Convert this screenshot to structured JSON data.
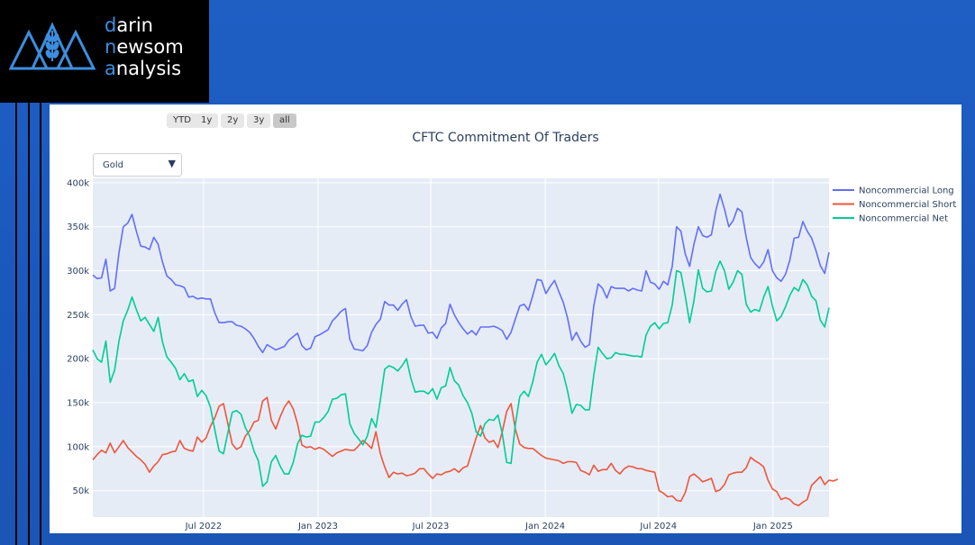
{
  "brand": {
    "line1_first": "d",
    "line1_rest": "arin",
    "line2_pre": "n",
    "line2_rest": "ewsom",
    "line3_first": "a",
    "line3_rest": "nalysis"
  },
  "range_selector": [
    {
      "label": "YTD",
      "active": false
    },
    {
      "label": "1y",
      "active": false
    },
    {
      "label": "2y",
      "active": false
    },
    {
      "label": "3y",
      "active": false
    },
    {
      "label": "all",
      "active": true
    }
  ],
  "dropdown": {
    "selected": "Gold"
  },
  "colors": {
    "long": "#636efa",
    "short": "#ef553b",
    "net": "#00cc96",
    "plot_bg": "#e5ecf6",
    "page_bg": "#1f5fc4"
  },
  "chart_data": {
    "type": "line",
    "title": "CFTC Commitment Of Traders",
    "x_start": "2022-01-04",
    "x_step_days": 7,
    "ylim": [
      20000,
      405000
    ],
    "y_ticks": [
      50000,
      100000,
      150000,
      200000,
      250000,
      300000,
      350000,
      400000
    ],
    "y_tick_labels": [
      "50k",
      "100k",
      "150k",
      "200k",
      "250k",
      "300k",
      "350k",
      "400k"
    ],
    "x_tick_labels": [
      {
        "date": "2022-07-01",
        "label": "Jul 2022"
      },
      {
        "date": "2023-01-01",
        "label": "Jan 2023"
      },
      {
        "date": "2023-07-01",
        "label": "Jul 2023"
      },
      {
        "date": "2024-01-01",
        "label": "Jan 2024"
      },
      {
        "date": "2024-07-01",
        "label": "Jul 2024"
      },
      {
        "date": "2025-01-01",
        "label": "Jan 2025"
      }
    ],
    "legend_position": "top-right",
    "grid": true,
    "series": [
      {
        "name": "Noncommercial Long",
        "color_key": "long",
        "values": [
          295000,
          291000,
          292000,
          313000,
          277000,
          280000,
          320000,
          350000,
          354000,
          364000,
          345000,
          328000,
          327000,
          324000,
          338000,
          330000,
          310000,
          294000,
          290000,
          284000,
          283000,
          281000,
          270000,
          271000,
          268000,
          269000,
          268000,
          268000,
          252000,
          241000,
          241000,
          242000,
          242000,
          238000,
          237000,
          234000,
          230000,
          223000,
          214000,
          207000,
          216000,
          213000,
          210000,
          212000,
          214000,
          221000,
          225000,
          229000,
          215000,
          210000,
          212000,
          225000,
          227000,
          230000,
          233000,
          243000,
          248000,
          254000,
          257000,
          222000,
          211000,
          210000,
          209000,
          215000,
          230000,
          239000,
          245000,
          265000,
          261000,
          261000,
          255000,
          262000,
          267000,
          248000,
          237000,
          238000,
          238000,
          229000,
          230000,
          223000,
          235000,
          240000,
          262000,
          250000,
          241000,
          234000,
          228000,
          232000,
          227000,
          236000,
          236000,
          236000,
          237000,
          235000,
          232000,
          222000,
          230000,
          245000,
          260000,
          262000,
          255000,
          272000,
          290000,
          289000,
          274000,
          282000,
          289000,
          276000,
          264000,
          246000,
          221000,
          230000,
          220000,
          213000,
          216000,
          260000,
          285000,
          280000,
          269000,
          282000,
          280000,
          280000,
          280000,
          277000,
          280000,
          278000,
          277000,
          300000,
          287000,
          285000,
          279000,
          288000,
          284000,
          305000,
          350000,
          345000,
          319000,
          305000,
          330000,
          350000,
          340000,
          338000,
          341000,
          368000,
          387000,
          370000,
          350000,
          357000,
          371000,
          367000,
          338000,
          315000,
          308000,
          303000,
          310000,
          324000,
          300000,
          292000,
          288000,
          296000,
          312000,
          337000,
          338000,
          356000,
          345000,
          337000,
          323000,
          306000,
          297000,
          321000
        ]
      },
      {
        "name": "Noncommercial Short",
        "color_key": "short",
        "values": [
          85000,
          91000,
          96000,
          93000,
          104000,
          93000,
          100000,
          107000,
          99000,
          94000,
          89000,
          85000,
          80000,
          71000,
          78000,
          83000,
          91000,
          92000,
          94000,
          95000,
          107000,
          98000,
          96000,
          95000,
          111000,
          105000,
          110000,
          123000,
          133000,
          146000,
          149000,
          126000,
          103000,
          97000,
          100000,
          112000,
          118000,
          128000,
          130000,
          152000,
          156000,
          130000,
          120000,
          134000,
          145000,
          152000,
          143000,
          126000,
          102000,
          99000,
          100000,
          97000,
          99000,
          97000,
          93000,
          89000,
          93000,
          95000,
          97000,
          96000,
          96000,
          101000,
          107000,
          103000,
          98000,
          117000,
          92000,
          77000,
          65000,
          71000,
          69000,
          70000,
          67000,
          68000,
          70000,
          75000,
          75000,
          69000,
          64000,
          69000,
          68000,
          71000,
          72000,
          75000,
          71000,
          76000,
          78000,
          94000,
          110000,
          124000,
          110000,
          105000,
          107000,
          99000,
          117000,
          140000,
          149000,
          120000,
          103000,
          99000,
          98000,
          98000,
          94000,
          90000,
          87000,
          86000,
          85000,
          84000,
          81000,
          83000,
          83000,
          82000,
          73000,
          71000,
          68000,
          79000,
          72000,
          74000,
          74000,
          81000,
          73000,
          69000,
          75000,
          78000,
          77000,
          75000,
          75000,
          73000,
          72000,
          71000,
          50000,
          47000,
          43000,
          44000,
          39000,
          38000,
          48000,
          66000,
          69000,
          65000,
          60000,
          62000,
          64000,
          49000,
          51000,
          57000,
          68000,
          70000,
          71000,
          71000,
          76000,
          88000,
          84000,
          81000,
          77000,
          62000,
          52000,
          49000,
          40000,
          42000,
          40000,
          35000,
          33000,
          37000,
          40000,
          56000,
          61000,
          66000,
          57000,
          62000,
          61000,
          63000
        ]
      },
      {
        "name": "Noncommercial Net",
        "color_key": "net",
        "values": [
          210000,
          200000,
          196000,
          220000,
          173000,
          187000,
          220000,
          243000,
          255000,
          270000,
          256000,
          243000,
          247000,
          239000,
          231000,
          247000,
          219000,
          202000,
          196000,
          189000,
          176000,
          183000,
          174000,
          176000,
          157000,
          164000,
          158000,
          145000,
          119000,
          95000,
          92000,
          116000,
          139000,
          141000,
          137000,
          122000,
          112000,
          95000,
          84000,
          55000,
          60000,
          83000,
          90000,
          78000,
          69000,
          69000,
          82000,
          103000,
          113000,
          111000,
          112000,
          128000,
          128000,
          133000,
          140000,
          154000,
          155000,
          159000,
          160000,
          126000,
          115000,
          109000,
          102000,
          112000,
          132000,
          122000,
          153000,
          188000,
          192000,
          190000,
          186000,
          192000,
          200000,
          178000,
          162000,
          163000,
          163000,
          160000,
          166000,
          154000,
          167000,
          169000,
          190000,
          175000,
          170000,
          158000,
          150000,
          138000,
          117000,
          112000,
          126000,
          131000,
          130000,
          136000,
          115000,
          82000,
          81000,
          125000,
          157000,
          163000,
          157000,
          174000,
          196000,
          205000,
          193000,
          199000,
          206000,
          192000,
          183000,
          163000,
          138000,
          148000,
          147000,
          142000,
          142000,
          181000,
          213000,
          206000,
          200000,
          201000,
          207000,
          205000,
          205000,
          204000,
          203000,
          203000,
          202000,
          227000,
          237000,
          241000,
          234000,
          240000,
          241000,
          261000,
          300000,
          298000,
          271000,
          241000,
          266000,
          301000,
          280000,
          276000,
          277000,
          299000,
          311000,
          300000,
          279000,
          287000,
          300000,
          296000,
          262000,
          253000,
          256000,
          254000,
          270000,
          282000,
          260000,
          243000,
          248000,
          259000,
          272000,
          281000,
          277000,
          290000,
          284000,
          271000,
          266000,
          244000,
          236000,
          258000
        ]
      }
    ]
  }
}
